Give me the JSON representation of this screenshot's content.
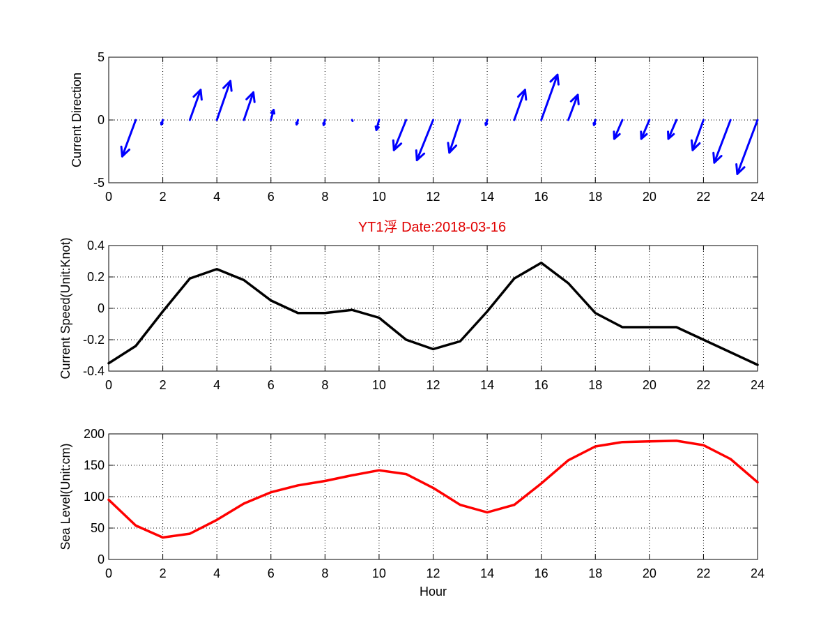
{
  "title": "YT1浮    Date:2018-03-16",
  "colors": {
    "direction": "#0000ff",
    "speed": "#000000",
    "sea_level": "#ff0000",
    "title": "#e00000"
  },
  "chart_data": [
    {
      "type": "quiver",
      "ylabel": "Current Direction",
      "xlim": [
        0,
        24
      ],
      "ylim": [
        -5,
        5
      ],
      "xticks": [
        0,
        2,
        4,
        6,
        8,
        10,
        12,
        14,
        16,
        18,
        20,
        22,
        24
      ],
      "yticks": [
        -5,
        0,
        5
      ],
      "grid": true,
      "vectors": [
        {
          "x": 0,
          "u": 0,
          "v": 0
        },
        {
          "x": 1,
          "u": -0.5,
          "v": -2.9
        },
        {
          "x": 2,
          "u": -0.05,
          "v": -0.35
        },
        {
          "x": 3,
          "u": 0.4,
          "v": 2.4
        },
        {
          "x": 4,
          "u": 0.5,
          "v": 3.1
        },
        {
          "x": 5,
          "u": 0.35,
          "v": 2.2
        },
        {
          "x": 6,
          "u": 0.1,
          "v": 0.8
        },
        {
          "x": 7,
          "u": -0.05,
          "v": -0.35
        },
        {
          "x": 8,
          "u": -0.05,
          "v": -0.4
        },
        {
          "x": 9,
          "u": 0.02,
          "v": -0.08
        },
        {
          "x": 10,
          "u": -0.1,
          "v": -0.8
        },
        {
          "x": 11,
          "u": -0.45,
          "v": -2.4
        },
        {
          "x": 12,
          "u": -0.6,
          "v": -3.2
        },
        {
          "x": 13,
          "u": -0.4,
          "v": -2.6
        },
        {
          "x": 14,
          "u": -0.05,
          "v": -0.4
        },
        {
          "x": 15,
          "u": 0.4,
          "v": 2.4
        },
        {
          "x": 16,
          "u": 0.6,
          "v": 3.6
        },
        {
          "x": 17,
          "u": 0.35,
          "v": 2.0
        },
        {
          "x": 18,
          "u": -0.05,
          "v": -0.4
        },
        {
          "x": 19,
          "u": -0.3,
          "v": -1.5
        },
        {
          "x": 20,
          "u": -0.3,
          "v": -1.5
        },
        {
          "x": 21,
          "u": -0.3,
          "v": -1.5
        },
        {
          "x": 22,
          "u": -0.4,
          "v": -2.4
        },
        {
          "x": 23,
          "u": -0.6,
          "v": -3.4
        },
        {
          "x": 24,
          "u": -0.75,
          "v": -4.3
        }
      ]
    },
    {
      "type": "line",
      "ylabel": "Current Speed(Unit:Knot)",
      "xlim": [
        0,
        24
      ],
      "ylim": [
        -0.4,
        0.4
      ],
      "xticks": [
        0,
        2,
        4,
        6,
        8,
        10,
        12,
        14,
        16,
        18,
        20,
        22,
        24
      ],
      "yticks": [
        -0.4,
        -0.2,
        0,
        0.2,
        0.4
      ],
      "grid": true,
      "x": [
        0,
        1,
        2,
        3,
        4,
        5,
        6,
        7,
        8,
        9,
        10,
        11,
        12,
        13,
        14,
        15,
        16,
        17,
        18,
        19,
        20,
        21,
        22,
        23,
        24
      ],
      "values": [
        -0.35,
        -0.24,
        -0.02,
        0.19,
        0.25,
        0.18,
        0.05,
        -0.03,
        -0.03,
        -0.01,
        -0.06,
        -0.2,
        -0.26,
        -0.21,
        -0.02,
        0.19,
        0.29,
        0.16,
        -0.03,
        -0.12,
        -0.12,
        -0.12,
        -0.2,
        -0.28,
        -0.36
      ]
    },
    {
      "type": "line",
      "ylabel": "Sea Level(Unit:cm)",
      "xlabel": "Hour",
      "xlim": [
        0,
        24
      ],
      "ylim": [
        0,
        200
      ],
      "xticks": [
        0,
        2,
        4,
        6,
        8,
        10,
        12,
        14,
        16,
        18,
        20,
        22,
        24
      ],
      "yticks": [
        0,
        50,
        100,
        150,
        200
      ],
      "grid": true,
      "x": [
        0,
        1,
        2,
        3,
        4,
        5,
        6,
        7,
        8,
        9,
        10,
        11,
        12,
        13,
        14,
        15,
        16,
        17,
        18,
        19,
        20,
        21,
        22,
        23,
        24
      ],
      "values": [
        95,
        54,
        35,
        41,
        63,
        89,
        107,
        118,
        125,
        134,
        142,
        136,
        114,
        87,
        75,
        87,
        121,
        158,
        180,
        187,
        188,
        189,
        182,
        160,
        123
      ]
    }
  ]
}
